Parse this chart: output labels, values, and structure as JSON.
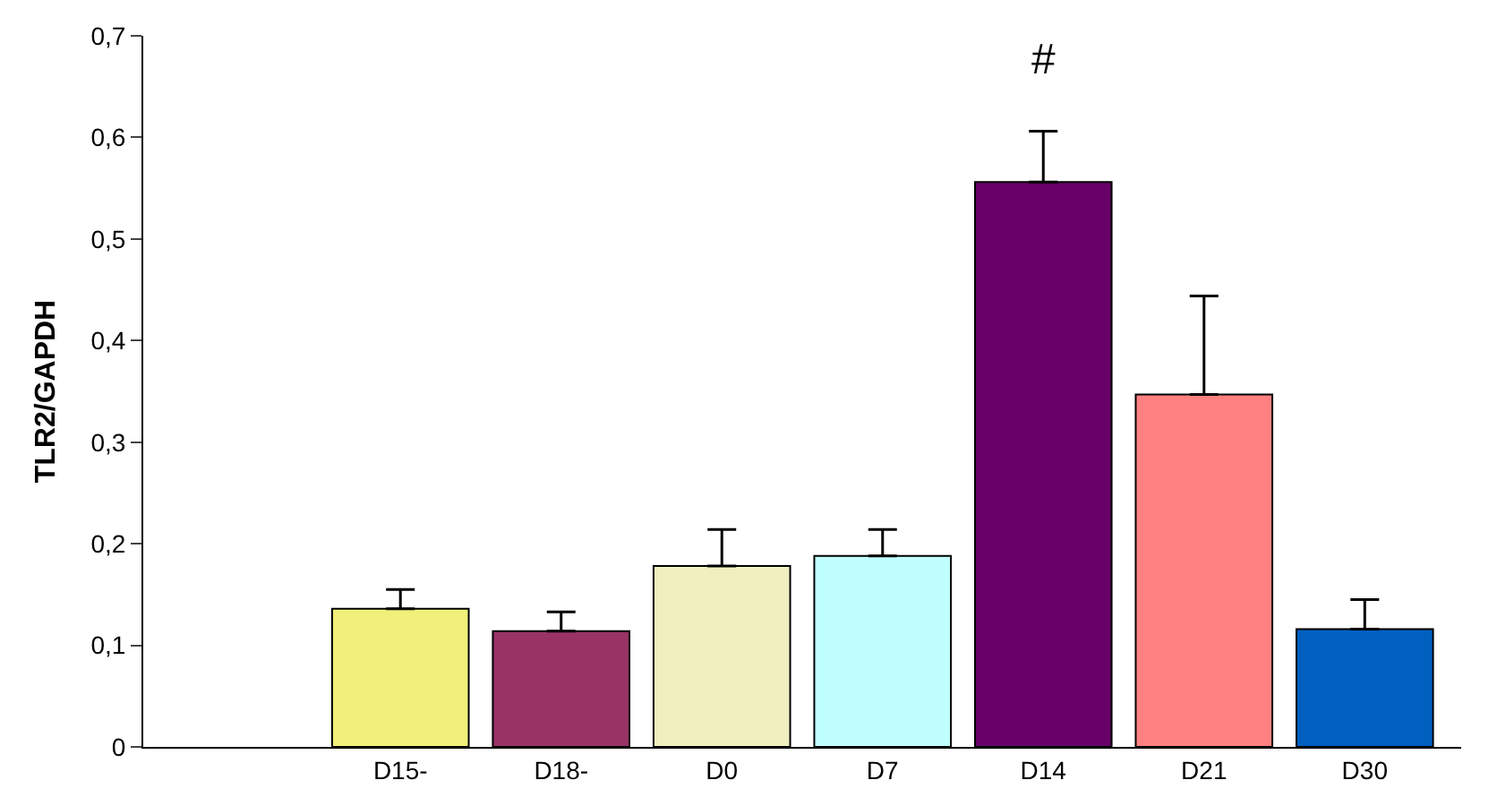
{
  "chart_data": {
    "type": "bar",
    "ylabel": "TLR2/GAPDH",
    "categories": [
      null,
      "D15-",
      "D18-",
      "D0",
      "D7",
      "D14",
      "D21",
      "D30"
    ],
    "values": [
      null,
      0.136,
      0.114,
      0.178,
      0.188,
      0.556,
      0.347,
      0.116
    ],
    "colors": [
      "#ffffff",
      "#f0f07a",
      "#993366",
      "#efefc0",
      "#c0ffff",
      "#660066",
      "#ff8080",
      "#0060c0"
    ],
    "errors": [
      null,
      [
        0.136,
        0.155
      ],
      [
        0.114,
        0.133
      ],
      [
        0.178,
        0.214
      ],
      [
        0.188,
        0.214
      ],
      [
        0.556,
        0.606
      ],
      [
        0.347,
        0.444
      ],
      [
        0.116,
        0.145
      ]
    ],
    "ylim": [
      0,
      0.7
    ],
    "yticks": [
      0,
      {
        "value": 0.1,
        "label": "0,1"
      },
      {
        "value": 0.2,
        "label": "0,2"
      },
      {
        "value": 0.3,
        "label": "0,3"
      },
      {
        "value": 0.4,
        "label": "0,4"
      },
      {
        "value": 0.5,
        "label": "0,5"
      },
      {
        "value": 0.6,
        "label": "0,6"
      },
      {
        "value": 0.7,
        "label": "0,7"
      }
    ],
    "annotations": [
      {
        "text": "#",
        "x": "D14",
        "y": 0.606
      }
    ]
  }
}
